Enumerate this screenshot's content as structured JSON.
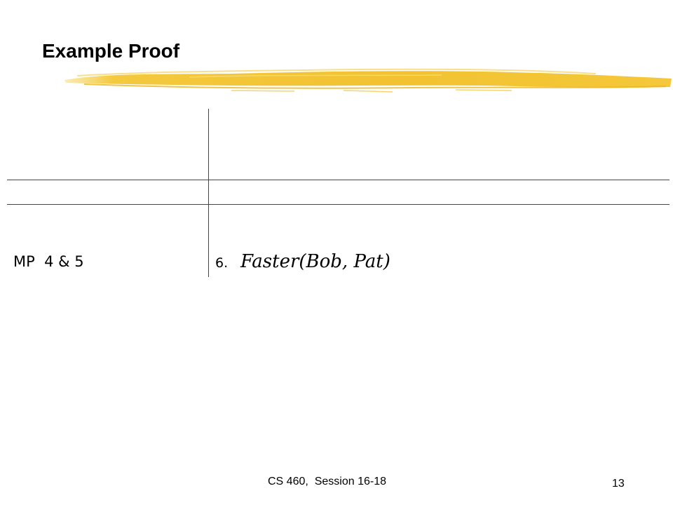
{
  "slide": {
    "title": "Example Proof",
    "accent_color": "#F2C230"
  },
  "proof": {
    "rows": [
      {
        "justification": "MP  4 & 5",
        "step_number": "6.",
        "formula": "Faster(Bob, Pat)"
      }
    ]
  },
  "footer": {
    "course": "CS 460,  Session 16-18",
    "page_number": "13"
  }
}
